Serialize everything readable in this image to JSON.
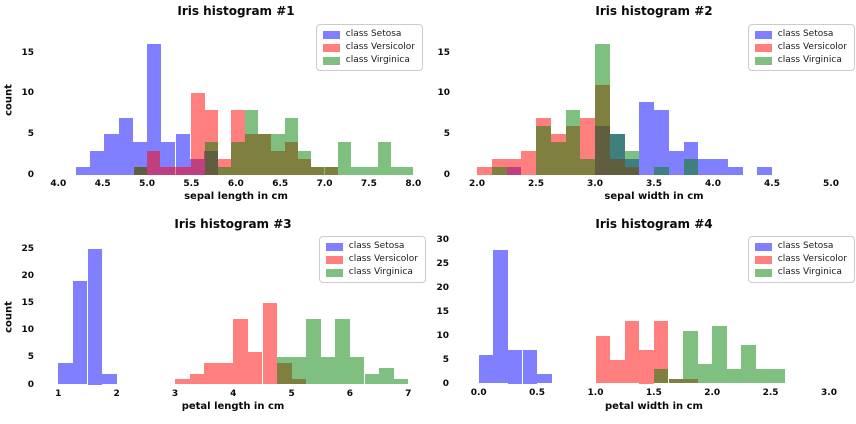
{
  "figure": {
    "background": "#ffffff"
  },
  "colors": {
    "setosa": "rgba(0,0,255,0.5)",
    "versicolor": "rgba(255,0,0,0.5)",
    "virginica": "rgba(0,128,0,0.5)"
  },
  "legend_labels": [
    "class Setosa",
    "class Versicolor",
    "class Virginica"
  ],
  "chart_data": [
    {
      "type": "bar",
      "subtype": "overlapping-histogram",
      "title": "Iris histogram #1",
      "xlabel": "sepal length in cm",
      "ylabel": "count",
      "x_tick_labels": [
        "4.0",
        "4.5",
        "5.0",
        "5.5",
        "6.0",
        "6.5",
        "7.0",
        "7.5",
        "8.0"
      ],
      "y_tick_labels": [
        "0",
        "5",
        "10",
        "15"
      ],
      "x_axis_range": [
        4.0,
        8.0
      ],
      "y_axis_range": [
        0,
        16
      ],
      "legend_position": "upper right",
      "grid": false,
      "series": [
        {
          "name": "class Setosa",
          "key": "setosa",
          "bins": [
            [
              4.2,
              4.36,
              1
            ],
            [
              4.36,
              4.52,
              3
            ],
            [
              4.52,
              4.68,
              5
            ],
            [
              4.68,
              4.84,
              7
            ],
            [
              4.84,
              5.0,
              4
            ],
            [
              5.0,
              5.16,
              16
            ],
            [
              5.16,
              5.32,
              4
            ],
            [
              5.32,
              5.48,
              5
            ],
            [
              5.48,
              5.64,
              2
            ],
            [
              5.64,
              5.8,
              3
            ]
          ]
        },
        {
          "name": "class Versicolor",
          "key": "versicolor",
          "bins": [
            [
              4.85,
              5.0,
              1
            ],
            [
              5.0,
              5.15,
              3
            ],
            [
              5.15,
              5.3,
              1
            ],
            [
              5.3,
              5.5,
              1
            ],
            [
              5.5,
              5.65,
              10
            ],
            [
              5.65,
              5.8,
              8
            ],
            [
              5.8,
              5.95,
              2
            ],
            [
              5.95,
              6.1,
              8
            ],
            [
              6.1,
              6.25,
              5
            ],
            [
              6.25,
              6.4,
              5
            ],
            [
              6.4,
              6.55,
              3
            ],
            [
              6.55,
              6.7,
              4
            ],
            [
              6.7,
              6.85,
              2
            ],
            [
              6.85,
              7.0,
              1
            ],
            [
              7.0,
              7.15,
              1
            ]
          ]
        },
        {
          "name": "class Virginica",
          "key": "virginica",
          "bins": [
            [
              4.85,
              5.0,
              1
            ],
            [
              5.65,
              5.8,
              4
            ],
            [
              5.8,
              5.95,
              1
            ],
            [
              5.95,
              6.1,
              4
            ],
            [
              6.1,
              6.25,
              8
            ],
            [
              6.25,
              6.4,
              5
            ],
            [
              6.4,
              6.55,
              5
            ],
            [
              6.55,
              6.7,
              7
            ],
            [
              6.7,
              6.85,
              3
            ],
            [
              6.85,
              7.15,
              1
            ],
            [
              7.15,
              7.3,
              4
            ],
            [
              7.3,
              7.6,
              1
            ],
            [
              7.6,
              7.75,
              4
            ],
            [
              7.75,
              8.0,
              1
            ]
          ]
        }
      ]
    },
    {
      "type": "bar",
      "subtype": "overlapping-histogram",
      "title": "Iris histogram #2",
      "xlabel": "sepal width in cm",
      "ylabel": null,
      "x_tick_labels": [
        "2.0",
        "2.5",
        "3.0",
        "3.5",
        "4.0",
        "4.5",
        "5.0"
      ],
      "y_tick_labels": [
        "0",
        "5",
        "10",
        "15"
      ],
      "x_axis_range": [
        2.0,
        5.0
      ],
      "y_axis_range": [
        0,
        16
      ],
      "legend_position": "upper right",
      "grid": false,
      "series": [
        {
          "name": "class Setosa",
          "key": "setosa",
          "bins": [
            [
              2.25,
              2.375,
              1
            ],
            [
              3.0,
              3.125,
              6
            ],
            [
              3.125,
              3.25,
              5
            ],
            [
              3.25,
              3.375,
              2
            ],
            [
              3.375,
              3.5,
              9
            ],
            [
              3.5,
              3.625,
              8
            ],
            [
              3.625,
              3.75,
              3
            ],
            [
              3.75,
              3.875,
              4
            ],
            [
              3.875,
              4.125,
              2
            ],
            [
              4.125,
              4.25,
              1
            ],
            [
              4.375,
              4.5,
              1
            ]
          ]
        },
        {
          "name": "class Versicolor",
          "key": "versicolor",
          "bins": [
            [
              2.0,
              2.125,
              1
            ],
            [
              2.125,
              2.25,
              2
            ],
            [
              2.25,
              2.375,
              2
            ],
            [
              2.375,
              2.5,
              3
            ],
            [
              2.5,
              2.625,
              7
            ],
            [
              2.625,
              2.75,
              5
            ],
            [
              2.75,
              2.875,
              6
            ],
            [
              2.875,
              3.0,
              7
            ],
            [
              3.0,
              3.125,
              11
            ],
            [
              3.125,
              3.25,
              2
            ],
            [
              3.25,
              3.375,
              1
            ]
          ]
        },
        {
          "name": "class Virginica",
          "key": "virginica",
          "bins": [
            [
              2.125,
              2.25,
              1
            ],
            [
              2.5,
              2.625,
              6
            ],
            [
              2.625,
              2.75,
              4
            ],
            [
              2.75,
              2.875,
              8
            ],
            [
              2.875,
              3.0,
              2
            ],
            [
              3.0,
              3.125,
              16
            ],
            [
              3.125,
              3.25,
              5
            ],
            [
              3.25,
              3.375,
              3
            ],
            [
              3.5,
              3.625,
              1
            ],
            [
              3.75,
              3.875,
              2
            ]
          ]
        }
      ]
    },
    {
      "type": "bar",
      "subtype": "overlapping-histogram",
      "title": "Iris histogram #3",
      "xlabel": "petal length in cm",
      "ylabel": "count",
      "x_tick_labels": [
        "1",
        "2",
        "3",
        "4",
        "5",
        "6",
        "7"
      ],
      "y_tick_labels": [
        "0",
        "5",
        "10",
        "15",
        "20",
        "25"
      ],
      "x_axis_range": [
        1.0,
        7.0
      ],
      "y_axis_range": [
        0,
        25
      ],
      "legend_position": "upper right",
      "grid": false,
      "series": [
        {
          "name": "class Setosa",
          "key": "setosa",
          "bins": [
            [
              1.0,
              1.25,
              4
            ],
            [
              1.25,
              1.5,
              19
            ],
            [
              1.5,
              1.75,
              25
            ],
            [
              1.75,
              2.0,
              2
            ]
          ]
        },
        {
          "name": "class Versicolor",
          "key": "versicolor",
          "bins": [
            [
              3.0,
              3.25,
              1
            ],
            [
              3.25,
              3.5,
              2
            ],
            [
              3.5,
              3.75,
              4
            ],
            [
              3.75,
              4.0,
              4
            ],
            [
              4.0,
              4.25,
              12
            ],
            [
              4.25,
              4.5,
              6
            ],
            [
              4.5,
              4.75,
              15
            ],
            [
              4.75,
              5.0,
              4
            ],
            [
              5.0,
              5.25,
              1
            ]
          ]
        },
        {
          "name": "class Virginica",
          "key": "virginica",
          "bins": [
            [
              4.75,
              5.0,
              5
            ],
            [
              5.0,
              5.25,
              5
            ],
            [
              5.25,
              5.5,
              12
            ],
            [
              5.5,
              5.75,
              5
            ],
            [
              5.75,
              6.0,
              12
            ],
            [
              6.0,
              6.25,
              5
            ],
            [
              6.25,
              6.5,
              2
            ],
            [
              6.5,
              6.75,
              3
            ],
            [
              6.75,
              7.0,
              1
            ]
          ]
        }
      ]
    },
    {
      "type": "bar",
      "subtype": "overlapping-histogram",
      "title": "Iris histogram #4",
      "xlabel": "petal width in cm",
      "ylabel": null,
      "x_tick_labels": [
        "0.0",
        "0.5",
        "1.0",
        "1.5",
        "2.0",
        "2.5",
        "3.0"
      ],
      "y_tick_labels": [
        "0",
        "5",
        "10",
        "15",
        "20",
        "25",
        "30"
      ],
      "x_axis_range": [
        0.0,
        3.0
      ],
      "y_axis_range": [
        0,
        30
      ],
      "legend_position": "upper right",
      "grid": false,
      "series": [
        {
          "name": "class Setosa",
          "key": "setosa",
          "bins": [
            [
              0.0,
              0.125,
              6
            ],
            [
              0.125,
              0.25,
              28
            ],
            [
              0.25,
              0.375,
              7
            ],
            [
              0.375,
              0.5,
              7
            ],
            [
              0.5,
              0.625,
              2
            ]
          ]
        },
        {
          "name": "class Versicolor",
          "key": "versicolor",
          "bins": [
            [
              1.0,
              1.125,
              10
            ],
            [
              1.125,
              1.25,
              5
            ],
            [
              1.25,
              1.375,
              13
            ],
            [
              1.375,
              1.5,
              7
            ],
            [
              1.5,
              1.625,
              13
            ],
            [
              1.625,
              1.75,
              1
            ],
            [
              1.75,
              1.875,
              1
            ]
          ]
        },
        {
          "name": "class Virginica",
          "key": "virginica",
          "bins": [
            [
              1.5,
              1.625,
              3
            ],
            [
              1.625,
              1.75,
              1
            ],
            [
              1.75,
              1.875,
              11
            ],
            [
              1.875,
              2.0,
              4
            ],
            [
              2.0,
              2.125,
              12
            ],
            [
              2.125,
              2.25,
              3
            ],
            [
              2.25,
              2.375,
              8
            ],
            [
              2.375,
              2.625,
              3
            ]
          ]
        }
      ]
    }
  ]
}
